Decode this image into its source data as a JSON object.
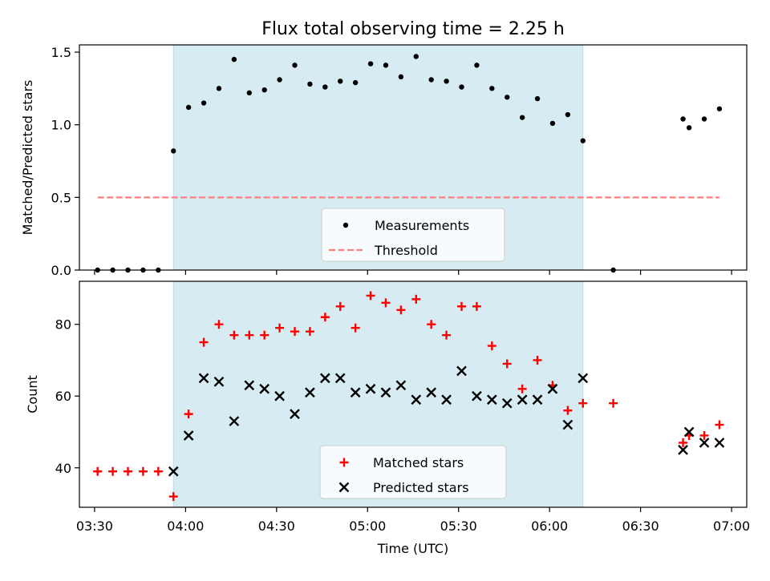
{
  "title": "Flux total observing time = 2.25 h",
  "colors": {
    "shade": "#add8e6",
    "measurement": "#000000",
    "threshold": "#ff7f7f",
    "matched": "#ff0000",
    "predicted": "#000000"
  },
  "chart_data": [
    {
      "type": "scatter",
      "ylabel": "Matched/Predicted stars",
      "xlim": [
        "03:25",
        "07:05"
      ],
      "ylim": [
        0,
        1.55
      ],
      "yticks": [
        "0.0",
        "0.5",
        "1.0",
        "1.5"
      ],
      "shaded_span": [
        "03:56",
        "06:11"
      ],
      "legend": {
        "placement": "lower-center",
        "entries": [
          "Measurements",
          "Threshold"
        ]
      },
      "series": [
        {
          "name": "Measurements",
          "marker": "dot",
          "points": [
            [
              "03:31",
              0.0
            ],
            [
              "03:36",
              0.0
            ],
            [
              "03:41",
              0.0
            ],
            [
              "03:46",
              0.0
            ],
            [
              "03:51",
              0.0
            ],
            [
              "03:56",
              0.82
            ],
            [
              "04:01",
              1.12
            ],
            [
              "04:06",
              1.15
            ],
            [
              "04:11",
              1.25
            ],
            [
              "04:16",
              1.45
            ],
            [
              "04:21",
              1.22
            ],
            [
              "04:26",
              1.24
            ],
            [
              "04:31",
              1.31
            ],
            [
              "04:36",
              1.41
            ],
            [
              "04:41",
              1.28
            ],
            [
              "04:46",
              1.26
            ],
            [
              "04:51",
              1.3
            ],
            [
              "04:56",
              1.29
            ],
            [
              "05:01",
              1.42
            ],
            [
              "05:06",
              1.41
            ],
            [
              "05:11",
              1.33
            ],
            [
              "05:16",
              1.47
            ],
            [
              "05:21",
              1.31
            ],
            [
              "05:26",
              1.3
            ],
            [
              "05:31",
              1.26
            ],
            [
              "05:36",
              1.41
            ],
            [
              "05:41",
              1.25
            ],
            [
              "05:46",
              1.19
            ],
            [
              "05:51",
              1.05
            ],
            [
              "05:56",
              1.18
            ],
            [
              "06:01",
              1.01
            ],
            [
              "06:06",
              1.07
            ],
            [
              "06:11",
              0.89
            ],
            [
              "06:21",
              0.0
            ],
            [
              "06:44",
              1.04
            ],
            [
              "06:46",
              0.98
            ],
            [
              "06:51",
              1.04
            ],
            [
              "06:56",
              1.11
            ]
          ]
        },
        {
          "name": "Threshold",
          "marker": "dashed-line",
          "points": [
            [
              "03:31",
              0.5
            ],
            [
              "06:56",
              0.5
            ]
          ]
        }
      ]
    },
    {
      "type": "scatter",
      "xlabel": "Time (UTC)",
      "ylabel": "Count",
      "xlim": [
        "03:25",
        "07:05"
      ],
      "ylim": [
        29,
        92
      ],
      "yticks": [
        "40",
        "60",
        "80"
      ],
      "xticks": [
        "03:30",
        "04:00",
        "04:30",
        "05:00",
        "05:30",
        "06:00",
        "06:30",
        "07:00"
      ],
      "shaded_span": [
        "03:56",
        "06:11"
      ],
      "legend": {
        "placement": "lower-center",
        "entries": [
          "Matched stars",
          "Predicted stars"
        ]
      },
      "series": [
        {
          "name": "Matched stars",
          "marker": "plus",
          "points": [
            [
              "03:31",
              39
            ],
            [
              "03:36",
              39
            ],
            [
              "03:41",
              39
            ],
            [
              "03:46",
              39
            ],
            [
              "03:51",
              39
            ],
            [
              "03:56",
              32
            ],
            [
              "04:01",
              55
            ],
            [
              "04:06",
              75
            ],
            [
              "04:11",
              80
            ],
            [
              "04:16",
              77
            ],
            [
              "04:21",
              77
            ],
            [
              "04:26",
              77
            ],
            [
              "04:31",
              79
            ],
            [
              "04:36",
              78
            ],
            [
              "04:41",
              78
            ],
            [
              "04:46",
              82
            ],
            [
              "04:51",
              85
            ],
            [
              "04:56",
              79
            ],
            [
              "05:01",
              88
            ],
            [
              "05:06",
              86
            ],
            [
              "05:11",
              84
            ],
            [
              "05:16",
              87
            ],
            [
              "05:21",
              80
            ],
            [
              "05:26",
              77
            ],
            [
              "05:31",
              85
            ],
            [
              "05:36",
              85
            ],
            [
              "05:41",
              74
            ],
            [
              "05:46",
              69
            ],
            [
              "05:51",
              62
            ],
            [
              "05:56",
              70
            ],
            [
              "06:01",
              63
            ],
            [
              "06:06",
              56
            ],
            [
              "06:11",
              58
            ],
            [
              "06:21",
              58
            ],
            [
              "06:44",
              47
            ],
            [
              "06:46",
              49
            ],
            [
              "06:51",
              49
            ],
            [
              "06:56",
              52
            ]
          ]
        },
        {
          "name": "Predicted stars",
          "marker": "x",
          "points": [
            [
              "03:56",
              39
            ],
            [
              "04:01",
              49
            ],
            [
              "04:06",
              65
            ],
            [
              "04:11",
              64
            ],
            [
              "04:16",
              53
            ],
            [
              "04:21",
              63
            ],
            [
              "04:26",
              62
            ],
            [
              "04:31",
              60
            ],
            [
              "04:36",
              55
            ],
            [
              "04:41",
              61
            ],
            [
              "04:46",
              65
            ],
            [
              "04:51",
              65
            ],
            [
              "04:56",
              61
            ],
            [
              "05:01",
              62
            ],
            [
              "05:06",
              61
            ],
            [
              "05:11",
              63
            ],
            [
              "05:16",
              59
            ],
            [
              "05:21",
              61
            ],
            [
              "05:26",
              59
            ],
            [
              "05:31",
              67
            ],
            [
              "05:36",
              60
            ],
            [
              "05:41",
              59
            ],
            [
              "05:46",
              58
            ],
            [
              "05:51",
              59
            ],
            [
              "05:56",
              59
            ],
            [
              "06:01",
              62
            ],
            [
              "06:06",
              52
            ],
            [
              "06:11",
              65
            ],
            [
              "06:44",
              45
            ],
            [
              "06:46",
              50
            ],
            [
              "06:51",
              47
            ],
            [
              "06:56",
              47
            ]
          ]
        }
      ]
    }
  ]
}
